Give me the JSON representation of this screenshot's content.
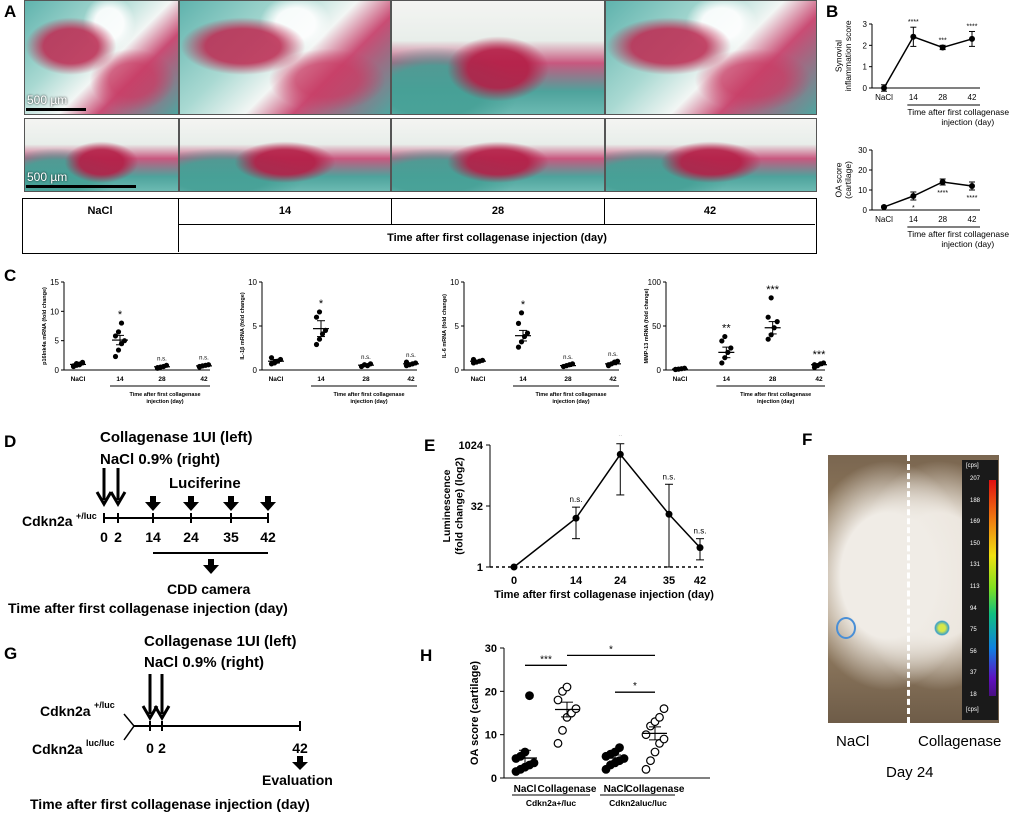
{
  "panels": {
    "A": "A",
    "B": "B",
    "C": "C",
    "D": "D",
    "E": "E",
    "F": "F",
    "G": "G",
    "H": "H"
  },
  "panel_a": {
    "scale_bar_label": "500 µm",
    "columns": [
      "NaCl",
      "14",
      "28",
      "42"
    ],
    "footer": "Time after first collagenase injection (day)"
  },
  "panel_d": {
    "injection_line1": "Collagenase 1UI (left)",
    "injection_line2": "NaCl 0.9% (right)",
    "luciferine": "Luciferine",
    "genotype": "Cdkn2a",
    "genotype_sup": "+/luc",
    "camera": "CDD camera",
    "xlabel": "Time after first collagenase injection (day)",
    "ticks": [
      "0",
      "2",
      "14",
      "24",
      "35",
      "42"
    ]
  },
  "panel_g": {
    "injection_line1": "Collagenase 1UI (left)",
    "injection_line2": "NaCl 0.9% (right)",
    "genotype1": "Cdkn2a",
    "genotype1_sup": "+/luc",
    "genotype2": "Cdkn2a",
    "genotype2_sup": "luc/luc",
    "ticks": [
      "0",
      "2",
      "42"
    ],
    "evaluation": "Evaluation",
    "xlabel": "Time after first collagenase injection (day)"
  },
  "panel_f": {
    "left_label": "NaCl",
    "right_label": "Collagenase",
    "day": "Day 24",
    "colorbar_unit": "[cps]",
    "colorbar_ticks": [
      "207",
      "188",
      "169",
      "150",
      "131",
      "113",
      "94",
      "75",
      "56",
      "37",
      "18"
    ]
  },
  "chart_data": [
    {
      "id": "B-top",
      "type": "line",
      "ylabel": "Synovial inflammation score",
      "categories": [
        "NaCl",
        "14",
        "28",
        "42"
      ],
      "xlabel": "Time after first collagenase injection (day)",
      "values": [
        0.0,
        2.4,
        1.9,
        2.3
      ],
      "errors": [
        0.15,
        0.45,
        0.1,
        0.35
      ],
      "ylim": [
        0,
        3
      ],
      "yticks": [
        "0",
        "1",
        "2",
        "3"
      ],
      "annotations": [
        "",
        "****",
        "***",
        "****"
      ]
    },
    {
      "id": "B-bottom",
      "type": "line",
      "ylabel": "OA score (cartilage)",
      "categories": [
        "NaCl",
        "14",
        "28",
        "42"
      ],
      "xlabel": "Time after first collagenase injection (day)",
      "values": [
        1.5,
        7.0,
        14.0,
        12.0
      ],
      "errors": [
        0.5,
        2.0,
        1.5,
        2.0
      ],
      "ylim": [
        0,
        30
      ],
      "yticks": [
        "0",
        "10",
        "20",
        "30"
      ],
      "annotations": [
        "",
        "*",
        "****",
        "****"
      ]
    },
    {
      "id": "C1",
      "type": "scatter",
      "ylabel": "p16Ink4a mRNA (fold change)",
      "categories": [
        "NaCl",
        "14",
        "28",
        "42"
      ],
      "xlabel": "Time after first collagenase injection (day)",
      "ylim": [
        0,
        15
      ],
      "yticks": [
        "0",
        "5",
        "10",
        "15"
      ],
      "points": [
        [
          0.6,
          0.8,
          1.0,
          1.2,
          0.7,
          1.1,
          0.9,
          1.3
        ],
        [
          2.3,
          3.4,
          4.5,
          5.0,
          5.8,
          6.5,
          8.0
        ],
        [
          0.3,
          0.5,
          0.6,
          0.8,
          0.4
        ],
        [
          0.5,
          0.7,
          0.8,
          0.9,
          0.6
        ]
      ],
      "means": [
        0.95,
        5.1,
        0.55,
        0.7
      ],
      "sems": [
        0.1,
        0.8,
        0.1,
        0.1
      ],
      "annotations": [
        "",
        "*",
        "n.s.",
        "n.s."
      ]
    },
    {
      "id": "C2",
      "type": "scatter",
      "ylabel": "IL-1β mRNA (fold change)",
      "categories": [
        "NaCl",
        "14",
        "28",
        "42"
      ],
      "xlabel": "Time after first collagenase injection (day)",
      "ylim": [
        0,
        10
      ],
      "yticks": [
        "0",
        "5",
        "10"
      ],
      "points": [
        [
          0.7,
          0.8,
          1.0,
          1.2,
          1.4,
          0.9
        ],
        [
          2.9,
          3.5,
          4.1,
          4.5,
          6.0,
          6.6
        ],
        [
          0.4,
          0.6,
          0.5,
          0.7
        ],
        [
          0.5,
          0.6,
          0.7,
          0.8,
          0.9
        ]
      ],
      "means": [
        1.0,
        4.7,
        0.55,
        0.7
      ],
      "sems": [
        0.2,
        0.9,
        0.1,
        0.1
      ],
      "annotations": [
        "",
        "*",
        "n.s.",
        "n.s."
      ]
    },
    {
      "id": "C3",
      "type": "scatter",
      "ylabel": "IL-6 mRNA (fold change)",
      "categories": [
        "NaCl",
        "14",
        "28",
        "42"
      ],
      "xlabel": "Time after first collagenase injection (day)",
      "ylim": [
        0,
        10
      ],
      "yticks": [
        "0",
        "5",
        "10"
      ],
      "points": [
        [
          0.8,
          0.9,
          1.0,
          1.1,
          1.2
        ],
        [
          2.6,
          3.2,
          3.8,
          4.2,
          5.3,
          6.5
        ],
        [
          0.4,
          0.5,
          0.6,
          0.7
        ],
        [
          0.5,
          0.7,
          0.9,
          1.0,
          0.6
        ]
      ],
      "means": [
        1.0,
        3.9,
        0.5,
        0.7
      ],
      "sems": [
        0.1,
        0.6,
        0.1,
        0.1
      ],
      "annotations": [
        "",
        "*",
        "n.s.",
        "n.s."
      ]
    },
    {
      "id": "C4",
      "type": "scatter",
      "ylabel": "MMP-13 mRNA (fold change)",
      "categories": [
        "NaCl",
        "14",
        "28",
        "42"
      ],
      "xlabel": "Time after first collagenase injection (day)",
      "ylim": [
        0,
        100
      ],
      "yticks": [
        "0",
        "50",
        "100"
      ],
      "points": [
        [
          0.5,
          1.0,
          1.5,
          2.0,
          0.8
        ],
        [
          8,
          14,
          20,
          25,
          33,
          38
        ],
        [
          35,
          40,
          48,
          55,
          60,
          82
        ],
        [
          3,
          5,
          7,
          8,
          6
        ]
      ],
      "means": [
        1.0,
        20,
        48,
        6
      ],
      "sems": [
        0.3,
        6,
        7,
        1
      ],
      "annotations": [
        "",
        "**",
        "***",
        "***"
      ]
    },
    {
      "id": "E",
      "type": "line",
      "ylabel": "Luminescence (fold change) (log2)",
      "xlabel": "Time after first collagenase injection (day)",
      "x": [
        0,
        14,
        24,
        35,
        42
      ],
      "values": [
        1,
        16,
        600,
        20,
        3
      ],
      "err_low": [
        1,
        5,
        60,
        1,
        1.5
      ],
      "err_high": [
        1,
        30,
        1100,
        110,
        5
      ],
      "ylim": [
        1,
        1024
      ],
      "yticks": [
        "1",
        "32",
        "1024"
      ],
      "yscale": "log2",
      "annotations": [
        "",
        "n.s.",
        "*",
        "n.s.",
        "n.s."
      ]
    },
    {
      "id": "H",
      "type": "scatter",
      "ylabel": "OA score (cartilage)",
      "categories": [
        "NaCl",
        "Collagenase",
        "NaCl",
        "Collagenase"
      ],
      "group_labels": [
        "Cdkn2a+/luc",
        "Cdkn2aluc/luc"
      ],
      "ylim": [
        0,
        30
      ],
      "yticks": [
        "0",
        "10",
        "20",
        "30"
      ],
      "points": [
        [
          1.5,
          2.0,
          2.5,
          3.0,
          3.5,
          4.5,
          5.0,
          6.0,
          19.0
        ],
        [
          8.0,
          11.0,
          14.0,
          15.0,
          16.0,
          18.0,
          20.0,
          21.0
        ],
        [
          2.0,
          3.0,
          3.5,
          4.0,
          4.5,
          5.0,
          5.5,
          6.0,
          7.0
        ],
        [
          2.0,
          4.0,
          6.0,
          8.0,
          9.0,
          10.0,
          12.0,
          13.0,
          14.0,
          16.0
        ]
      ],
      "means": [
        4.6,
        15.8,
        4.6,
        10.3
      ],
      "sems": [
        1.8,
        1.7,
        0.7,
        1.5
      ],
      "comparisons": [
        "***",
        "*",
        "*"
      ]
    }
  ]
}
